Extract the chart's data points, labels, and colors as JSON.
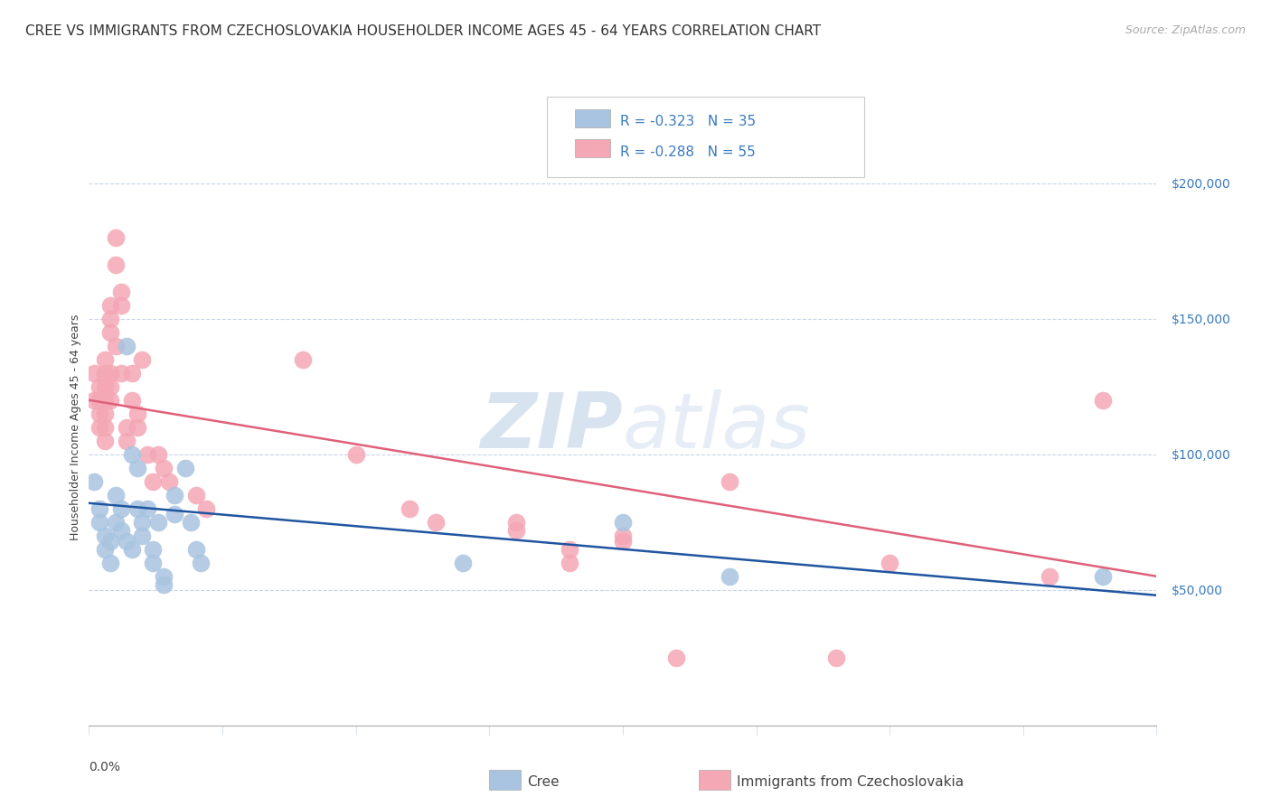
{
  "title": "CREE VS IMMIGRANTS FROM CZECHOSLOVAKIA HOUSEHOLDER INCOME AGES 45 - 64 YEARS CORRELATION CHART",
  "source": "Source: ZipAtlas.com",
  "ylabel": "Householder Income Ages 45 - 64 years",
  "xmin": 0.0,
  "xmax": 0.2,
  "ymin": 0,
  "ymax": 220000,
  "yticks": [
    50000,
    100000,
    150000,
    200000
  ],
  "ytick_labels": [
    "$50,000",
    "$100,000",
    "$150,000",
    "$200,000"
  ],
  "legend_blue_r": "R = -0.323",
  "legend_blue_n": "N = 35",
  "legend_pink_r": "R = -0.288",
  "legend_pink_n": "N = 55",
  "legend_blue_label": "Cree",
  "legend_pink_label": "Immigrants from Czechoslovakia",
  "watermark": "ZIPatlas",
  "blue_color": "#a8c4e0",
  "pink_color": "#f4a7b5",
  "blue_line_color": "#2055a0",
  "pink_line_color": "#e0607a",
  "blue_scatter": [
    [
      0.001,
      90000
    ],
    [
      0.002,
      80000
    ],
    [
      0.002,
      75000
    ],
    [
      0.003,
      70000
    ],
    [
      0.003,
      65000
    ],
    [
      0.004,
      68000
    ],
    [
      0.004,
      60000
    ],
    [
      0.005,
      85000
    ],
    [
      0.005,
      75000
    ],
    [
      0.006,
      80000
    ],
    [
      0.006,
      72000
    ],
    [
      0.007,
      140000
    ],
    [
      0.007,
      68000
    ],
    [
      0.008,
      65000
    ],
    [
      0.008,
      100000
    ],
    [
      0.009,
      95000
    ],
    [
      0.009,
      80000
    ],
    [
      0.01,
      75000
    ],
    [
      0.01,
      70000
    ],
    [
      0.011,
      80000
    ],
    [
      0.012,
      65000
    ],
    [
      0.012,
      60000
    ],
    [
      0.013,
      75000
    ],
    [
      0.014,
      55000
    ],
    [
      0.014,
      52000
    ],
    [
      0.016,
      85000
    ],
    [
      0.016,
      78000
    ],
    [
      0.018,
      95000
    ],
    [
      0.019,
      75000
    ],
    [
      0.02,
      65000
    ],
    [
      0.021,
      60000
    ],
    [
      0.07,
      60000
    ],
    [
      0.1,
      75000
    ],
    [
      0.12,
      55000
    ],
    [
      0.19,
      55000
    ]
  ],
  "pink_scatter": [
    [
      0.001,
      120000
    ],
    [
      0.001,
      130000
    ],
    [
      0.002,
      125000
    ],
    [
      0.002,
      120000
    ],
    [
      0.002,
      115000
    ],
    [
      0.002,
      110000
    ],
    [
      0.003,
      135000
    ],
    [
      0.003,
      130000
    ],
    [
      0.003,
      125000
    ],
    [
      0.003,
      120000
    ],
    [
      0.003,
      115000
    ],
    [
      0.003,
      110000
    ],
    [
      0.003,
      105000
    ],
    [
      0.004,
      155000
    ],
    [
      0.004,
      150000
    ],
    [
      0.004,
      145000
    ],
    [
      0.004,
      130000
    ],
    [
      0.004,
      125000
    ],
    [
      0.004,
      120000
    ],
    [
      0.005,
      140000
    ],
    [
      0.005,
      180000
    ],
    [
      0.005,
      170000
    ],
    [
      0.006,
      160000
    ],
    [
      0.006,
      155000
    ],
    [
      0.006,
      130000
    ],
    [
      0.007,
      110000
    ],
    [
      0.007,
      105000
    ],
    [
      0.008,
      130000
    ],
    [
      0.008,
      120000
    ],
    [
      0.009,
      115000
    ],
    [
      0.009,
      110000
    ],
    [
      0.01,
      135000
    ],
    [
      0.011,
      100000
    ],
    [
      0.012,
      90000
    ],
    [
      0.013,
      100000
    ],
    [
      0.014,
      95000
    ],
    [
      0.015,
      90000
    ],
    [
      0.02,
      85000
    ],
    [
      0.022,
      80000
    ],
    [
      0.04,
      135000
    ],
    [
      0.05,
      100000
    ],
    [
      0.06,
      80000
    ],
    [
      0.065,
      75000
    ],
    [
      0.08,
      75000
    ],
    [
      0.08,
      72000
    ],
    [
      0.09,
      65000
    ],
    [
      0.09,
      60000
    ],
    [
      0.1,
      70000
    ],
    [
      0.1,
      68000
    ],
    [
      0.11,
      25000
    ],
    [
      0.12,
      90000
    ],
    [
      0.14,
      25000
    ],
    [
      0.15,
      60000
    ],
    [
      0.18,
      55000
    ],
    [
      0.19,
      120000
    ]
  ],
  "blue_line_x": [
    0.0,
    0.2
  ],
  "blue_line_y": [
    82000,
    48000
  ],
  "pink_line_x": [
    0.0,
    0.2
  ],
  "pink_line_y": [
    120000,
    55000
  ],
  "background_color": "#ffffff",
  "grid_color": "#c8d4e8",
  "title_fontsize": 11,
  "axis_label_fontsize": 9,
  "tick_fontsize": 10,
  "legend_fontsize": 11,
  "source_fontsize": 9,
  "xtick_color": "#888888",
  "ytick_color": "#3a7abf"
}
